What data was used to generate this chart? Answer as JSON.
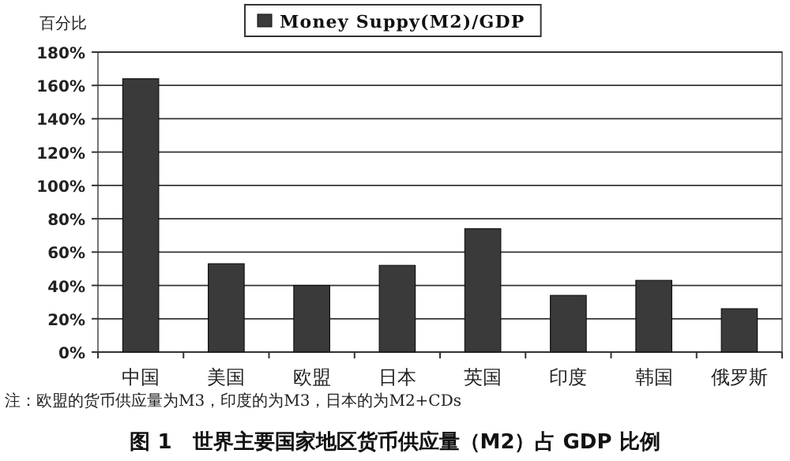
{
  "chart_data": {
    "type": "bar",
    "title": "图 1　世界主要国家地区货币供应量（M2）占 GDP 比例",
    "ylabel": "百分比",
    "annotations": [
      "注：欧盟的货币供应量为M3，印度的为M3，日本的为M2+CDs"
    ],
    "categories": [
      "中国",
      "美国",
      "欧盟",
      "日本",
      "英国",
      "印度",
      "韩国",
      "俄罗斯"
    ],
    "series": [
      {
        "name": "Money Suppy(M2)/GDP",
        "color": "#3a3a3a",
        "values": [
          164,
          53,
          40,
          52,
          74,
          34,
          43,
          26
        ]
      }
    ],
    "ylim": [
      0,
      180
    ],
    "yticks": [
      {
        "value": 0,
        "label": "0%"
      },
      {
        "value": 20,
        "label": "20%"
      },
      {
        "value": 40,
        "label": "40%"
      },
      {
        "value": 60,
        "label": "60%"
      },
      {
        "value": 80,
        "label": "80%"
      },
      {
        "value": 100,
        "label": "100%"
      },
      {
        "value": 120,
        "label": "120%"
      },
      {
        "value": 140,
        "label": "140%"
      },
      {
        "value": 160,
        "label": "160%"
      },
      {
        "value": 180,
        "label": "180%"
      }
    ],
    "grid": "y",
    "legend": "top"
  }
}
